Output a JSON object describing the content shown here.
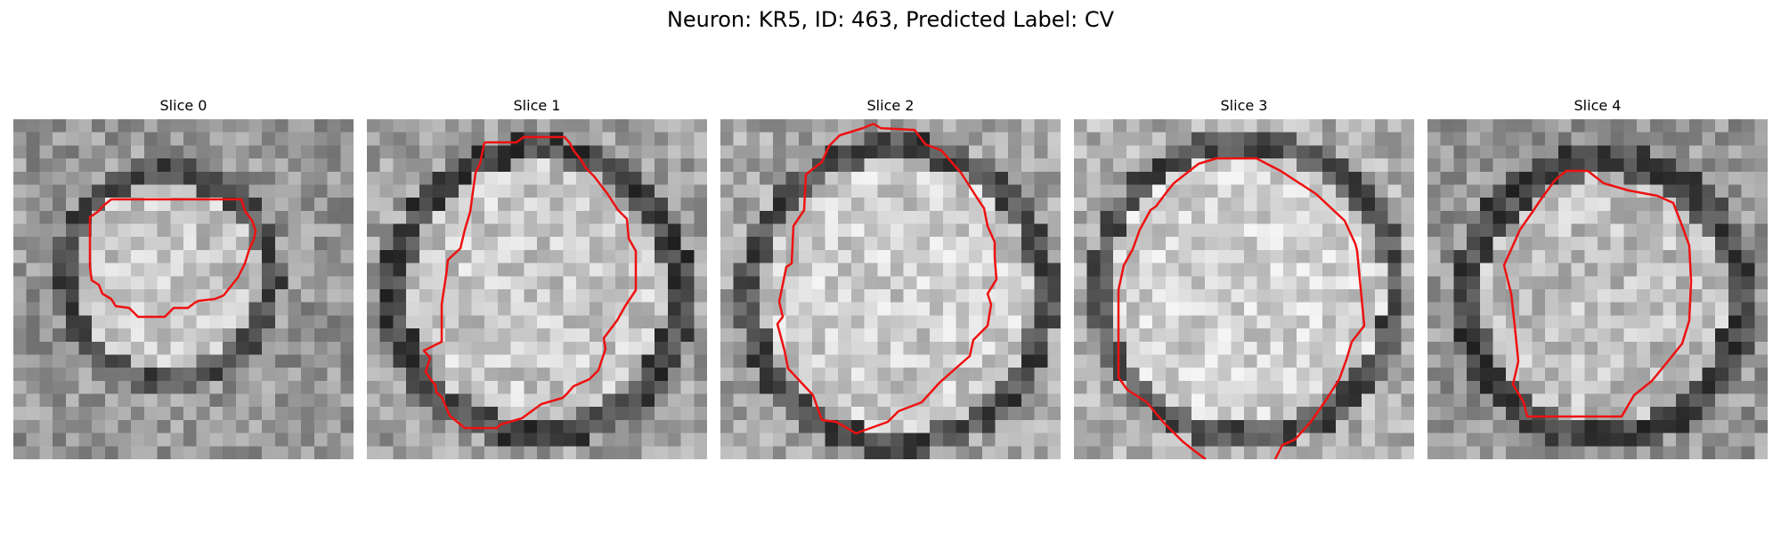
{
  "title": "Neuron: KR5, ID: 463, Predicted Label: CV",
  "contour_color": "#ee1111",
  "slices": [
    {
      "label": "Slice 0"
    },
    {
      "label": "Slice 1"
    },
    {
      "label": "Slice 2"
    },
    {
      "label": "Slice 3"
    },
    {
      "label": "Slice 4"
    }
  ]
}
